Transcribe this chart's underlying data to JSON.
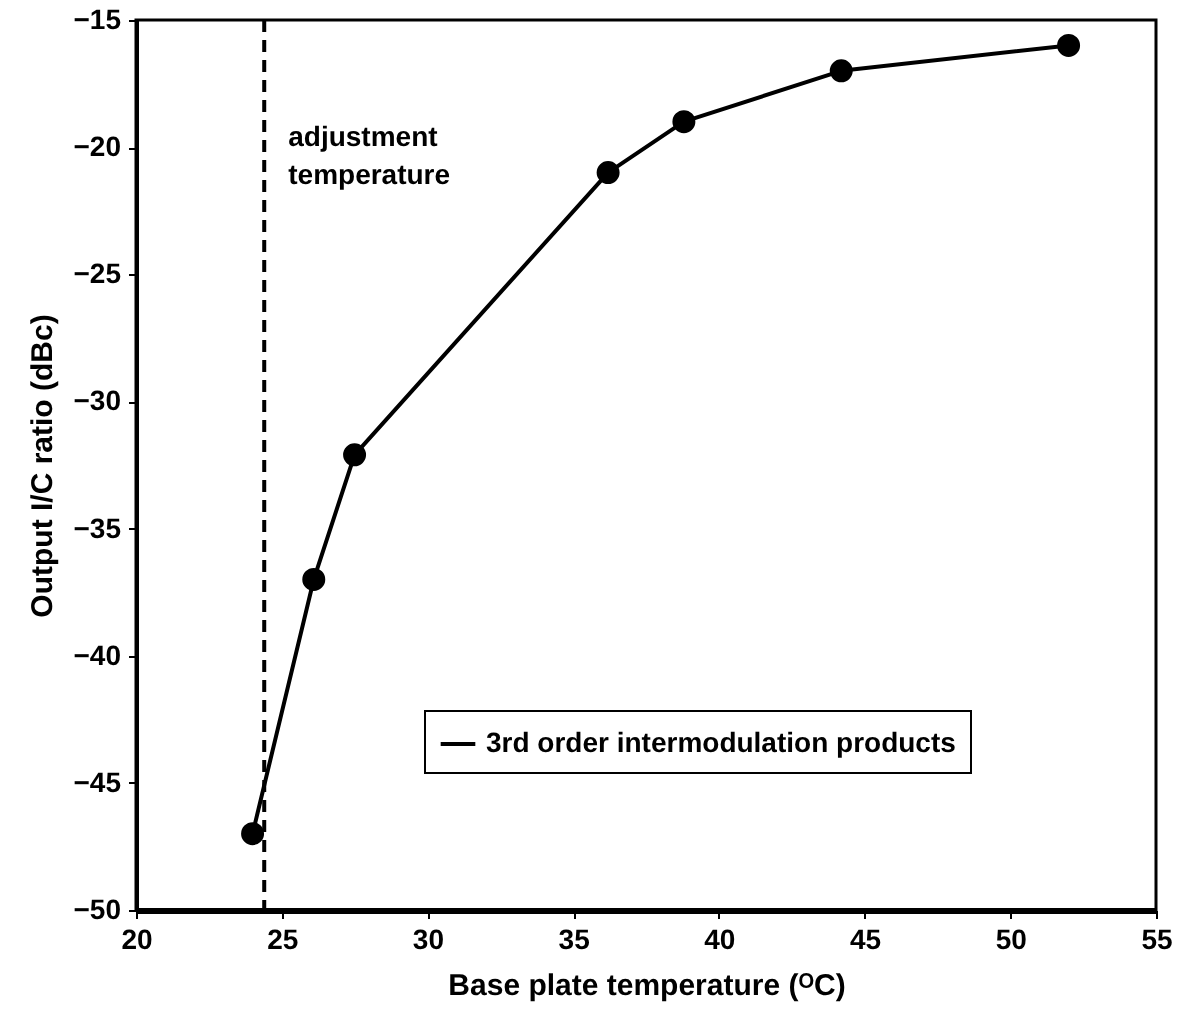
{
  "chart_data": {
    "type": "line",
    "xlabel": "Base plate temperature (ᴼC)",
    "ylabel": "Output I/C ratio (dBc)",
    "x": [
      24.0,
      26.1,
      27.5,
      36.2,
      38.8,
      44.2,
      52.0
    ],
    "series": [
      {
        "name": "3rd order intermodulation products",
        "color": "#000000",
        "values": [
          -47,
          -37,
          -32.1,
          -21,
          -19,
          -17,
          -16
        ]
      }
    ],
    "xlim": [
      20,
      55
    ],
    "xticks": [
      20,
      25,
      30,
      35,
      40,
      45,
      50,
      55
    ],
    "ylim": [
      -50,
      -15
    ],
    "yticks": [
      -50,
      -45,
      -40,
      -35,
      -30,
      -25,
      -20,
      -15
    ],
    "ref_lines": [
      {
        "axis": "x",
        "value": 24.4,
        "label": "adjustment temperature",
        "line_style": "dashed",
        "color": "#000000"
      }
    ],
    "grid": false,
    "legend": "bottom right",
    "marker": "circle",
    "line_style": "solid"
  }
}
